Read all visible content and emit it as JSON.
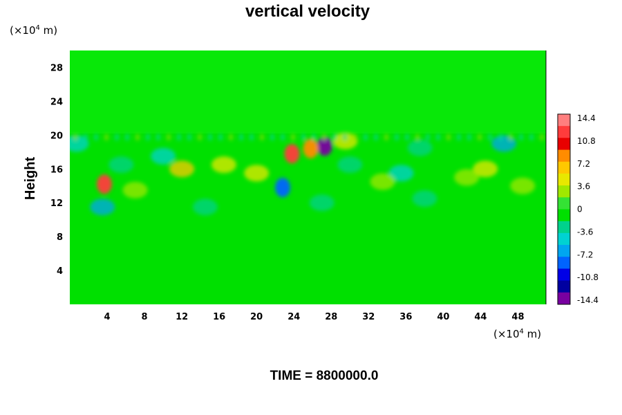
{
  "chart_data": {
    "type": "heatmap",
    "title": "vertical velocity",
    "ylabel": "Height",
    "x_unit_prefix": "(×10",
    "x_unit_exp": "4",
    "x_unit_suffix": " m)",
    "y_unit_prefix": "(×10",
    "y_unit_exp": "4",
    "y_unit_suffix": " m)",
    "xlim": [
      0,
      51
    ],
    "ylim": [
      0,
      30
    ],
    "x_ticks": [
      4,
      8,
      12,
      16,
      20,
      24,
      28,
      32,
      36,
      40,
      44,
      48
    ],
    "y_ticks": [
      4,
      8,
      12,
      16,
      20,
      24,
      28
    ],
    "time_label": "TIME = 8800000.0",
    "background_value": 0,
    "disturbance_top": 20,
    "colorbar": {
      "min": -14.4,
      "max": 14.4,
      "labels": [
        "14.4",
        "10.8",
        "7.2",
        "3.6",
        "0",
        "-3.6",
        "-7.2",
        "-10.8",
        "-14.4"
      ],
      "colors": [
        "#ff7f7f",
        "#ff3c3c",
        "#e80000",
        "#ff8c00",
        "#ffc800",
        "#e8e800",
        "#a0e800",
        "#34e234",
        "#00e000",
        "#00d28c",
        "#00d2d2",
        "#00a6f0",
        "#0064ff",
        "#0000e6",
        "#0000a0",
        "#7800a0"
      ]
    },
    "features": [
      {
        "x": 3.7,
        "y": 14.2,
        "value": 11.5
      },
      {
        "x": 3.5,
        "y": 11.5,
        "value": -7.0
      },
      {
        "x": 23.8,
        "y": 17.8,
        "value": 12.0
      },
      {
        "x": 27.3,
        "y": 18.7,
        "value": -14.0
      },
      {
        "x": 25.8,
        "y": 18.4,
        "value": 9.0
      },
      {
        "x": 22.8,
        "y": 13.8,
        "value": -9.0
      },
      {
        "x": 12.0,
        "y": 16.0,
        "value": 5.5
      },
      {
        "x": 16.5,
        "y": 16.5,
        "value": 4.5
      },
      {
        "x": 20.0,
        "y": 15.5,
        "value": 4.0
      },
      {
        "x": 44.5,
        "y": 16.0,
        "value": 4.5
      },
      {
        "x": 42.5,
        "y": 15.0,
        "value": 3.5
      },
      {
        "x": 46.5,
        "y": 19.0,
        "value": -6.0
      },
      {
        "x": 0.7,
        "y": 19.0,
        "value": -5.0
      },
      {
        "x": 35.5,
        "y": 15.5,
        "value": -4.0
      },
      {
        "x": 10.0,
        "y": 17.5,
        "value": -4.0
      },
      {
        "x": 30.0,
        "y": 16.5,
        "value": -3.5
      },
      {
        "x": 33.5,
        "y": 14.5,
        "value": 3.5
      },
      {
        "x": 7.0,
        "y": 13.5,
        "value": 3.0
      },
      {
        "x": 48.5,
        "y": 14.0,
        "value": 3.0
      },
      {
        "x": 38.0,
        "y": 12.5,
        "value": -3.5
      },
      {
        "x": 14.5,
        "y": 11.5,
        "value": -3.0
      },
      {
        "x": 27.0,
        "y": 12.0,
        "value": -2.5
      },
      {
        "x": 5.5,
        "y": 16.5,
        "value": -3.5
      },
      {
        "x": 29.5,
        "y": 19.3,
        "value": 4.5
      },
      {
        "x": 37.5,
        "y": 18.5,
        "value": -3.0
      }
    ]
  }
}
